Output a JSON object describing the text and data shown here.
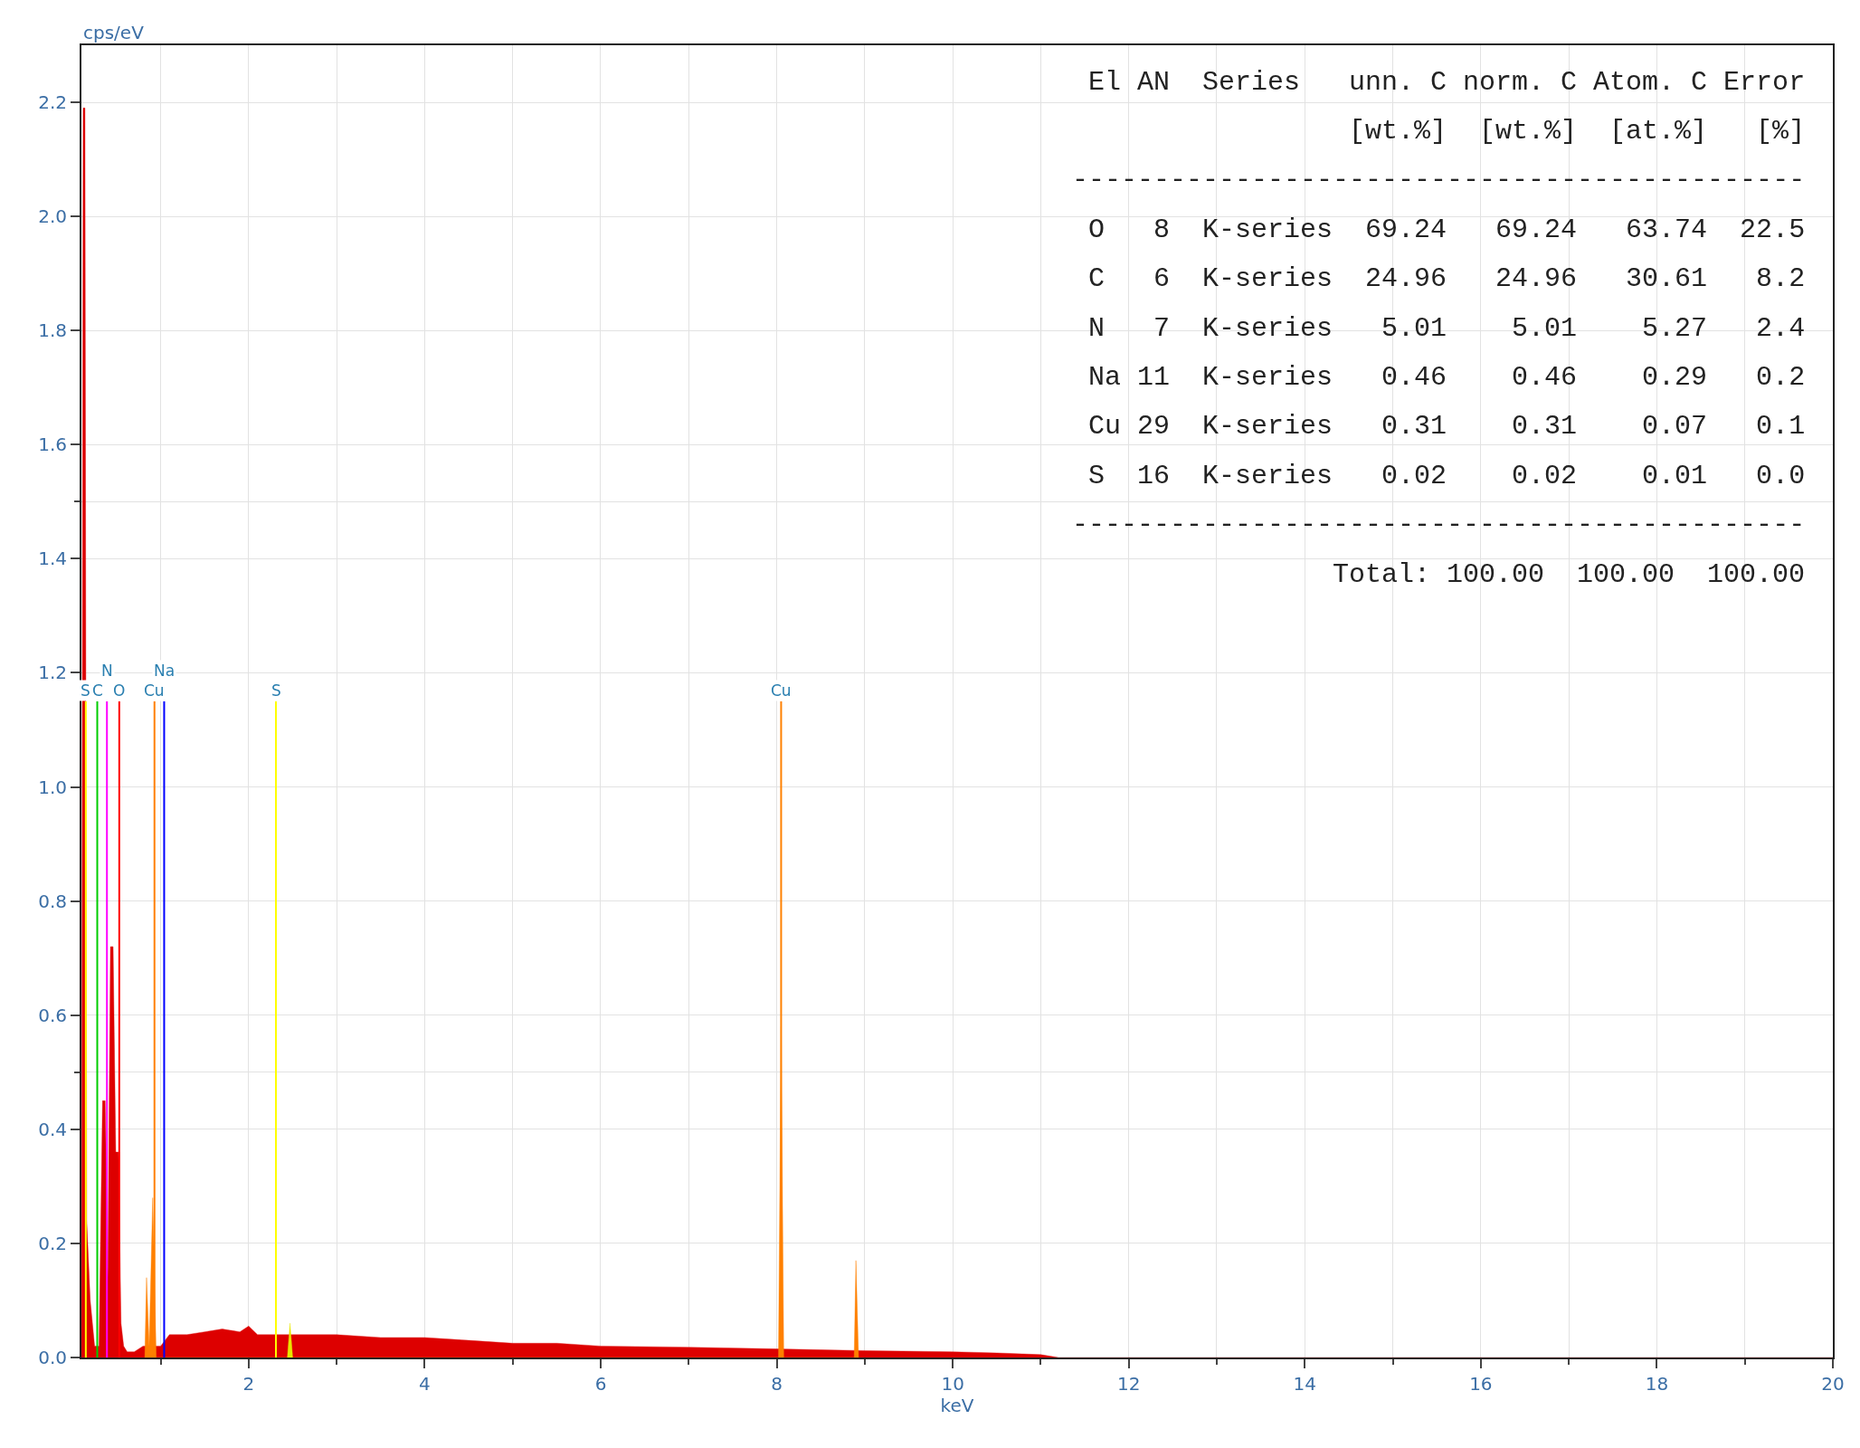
{
  "chart_data": {
    "type": "area",
    "ylabel": "cps/eV",
    "xlabel": "keV",
    "xlim": [
      0.1,
      20
    ],
    "xticks": [
      2,
      4,
      6,
      8,
      10,
      12,
      14,
      16,
      18,
      20
    ],
    "ylim": [
      0,
      2.3
    ],
    "yticks": [
      {
        "value": 0,
        "label": "0.0"
      },
      0.2,
      0.4,
      0.6,
      0.8,
      {
        "value": 1,
        "label": "1.0"
      },
      1.2,
      1.4,
      1.6,
      1.8,
      {
        "value": 2,
        "label": "2.0"
      },
      2.2
    ],
    "grid": true,
    "series": [
      {
        "color": "#dd0000",
        "x": [
          0.1,
          0.12,
          0.14,
          0.16,
          0.2,
          0.25,
          0.3,
          0.34,
          0.37,
          0.4,
          0.43,
          0.46,
          0.49,
          0.52,
          0.55,
          0.58,
          0.62,
          0.7,
          0.8,
          1.0,
          1.1,
          1.3,
          1.5,
          1.7,
          1.9,
          2.0,
          2.1,
          2.3,
          2.5,
          3.0,
          3.5,
          4.0,
          4.5,
          5.0,
          5.5,
          6.0,
          7.0,
          8.0,
          9.0,
          10.0,
          10.5,
          11.0,
          11.2,
          20.0
        ],
        "values": [
          0,
          2.19,
          2.19,
          0.24,
          0.1,
          0.02,
          0.02,
          0.45,
          0.45,
          0.14,
          0.72,
          0.72,
          0.36,
          0.36,
          0.06,
          0.02,
          0.01,
          0.01,
          0.02,
          0.02,
          0.04,
          0.04,
          0.045,
          0.05,
          0.045,
          0.055,
          0.04,
          0.04,
          0.04,
          0.04,
          0.035,
          0.035,
          0.03,
          0.025,
          0.025,
          0.02,
          0.018,
          0.015,
          0.012,
          0.01,
          0.008,
          0.005,
          0,
          0
        ]
      },
      {
        "color": "#ff8000",
        "x": [
          0.82,
          0.84,
          0.87,
          0.91,
          0.95,
          8.02,
          8.05,
          8.08,
          8.88,
          8.9,
          8.93
        ],
        "values": [
          0,
          0.14,
          0.02,
          0.28,
          0,
          0,
          0.58,
          0,
          0,
          0.17,
          0
        ]
      },
      {
        "color": "#e8e800",
        "x": [
          2.44,
          2.47,
          2.5
        ],
        "values": [
          0,
          0.06,
          0
        ]
      }
    ],
    "ref_lines": [
      {
        "axis": "x",
        "value": 0.15,
        "label": "S",
        "color": "#ffff00"
      },
      {
        "axis": "x",
        "value": 0.28,
        "label": "C",
        "color": "#00cc00"
      },
      {
        "axis": "x",
        "value": 0.39,
        "label": "N",
        "color": "#ff00ff"
      },
      {
        "axis": "x",
        "value": 0.53,
        "label": "O",
        "color": "#ff0000"
      },
      {
        "axis": "x",
        "value": 0.93,
        "label": "Cu",
        "color": "#ff8000"
      },
      {
        "axis": "x",
        "value": 1.04,
        "label": "Na",
        "color": "#0000ff"
      },
      {
        "axis": "x",
        "value": 2.31,
        "label": "S",
        "color": "#ffff00"
      },
      {
        "axis": "x",
        "value": 8.05,
        "label": "Cu",
        "color": "#ff8000"
      }
    ],
    "annotations": [
      "El AN  Series   unn. C norm. C Atom. C Error",
      "                [wt.%]  [wt.%]  [at.%]   [%]",
      "---------------------------------------------",
      "O   8  K-series  69.24   69.24   63.74  22.5",
      "C   6  K-series  24.96   24.96   30.61   8.2",
      "N   7  K-series   5.01    5.01    5.27   2.4",
      "Na 11  K-series   0.46    0.46    0.29   0.2",
      "Cu 29  K-series   0.31    0.31    0.07   0.1",
      "S  16  K-series   0.02    0.02    0.01   0.0",
      "---------------------------------------------",
      "           Total: 100.00  100.00  100.00"
    ]
  }
}
